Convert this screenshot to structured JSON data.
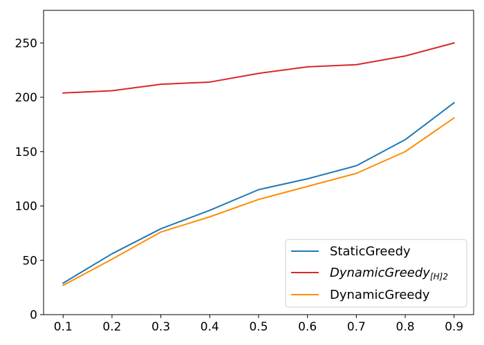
{
  "chart_data": {
    "type": "line",
    "title": "",
    "xlabel": "",
    "ylabel": "",
    "x": [
      0.1,
      0.2,
      0.3,
      0.4,
      0.5,
      0.6,
      0.7,
      0.8,
      0.9
    ],
    "xlim": [
      0.06,
      0.94
    ],
    "ylim": [
      0,
      280
    ],
    "xticks": [
      "0.1",
      "0.2",
      "0.3",
      "0.4",
      "0.5",
      "0.6",
      "0.7",
      "0.8",
      "0.9"
    ],
    "yticks": [
      "0",
      "50",
      "100",
      "150",
      "200",
      "250"
    ],
    "grid": false,
    "legend_position": "bottom-right",
    "series": [
      {
        "name": "StaticGreedy",
        "legend_main": "StaticGreedy",
        "legend_sub": "",
        "italic": false,
        "color": "#1f77b4",
        "values": [
          29,
          56,
          79,
          96,
          115,
          125,
          137,
          161,
          195
        ]
      },
      {
        "name": "DynamicGreedy[H]2",
        "legend_main": "DynamicGreedy",
        "legend_sub": "[H]2",
        "italic": true,
        "color": "#d62728",
        "values": [
          204,
          206,
          212,
          214,
          222,
          228,
          230,
          238,
          250
        ]
      },
      {
        "name": "DynamicGreedy",
        "legend_main": "DynamicGreedy",
        "legend_sub": "",
        "italic": false,
        "color": "#ff8c00",
        "values": [
          27,
          51,
          76,
          90,
          106,
          118,
          130,
          150,
          181
        ]
      }
    ]
  }
}
